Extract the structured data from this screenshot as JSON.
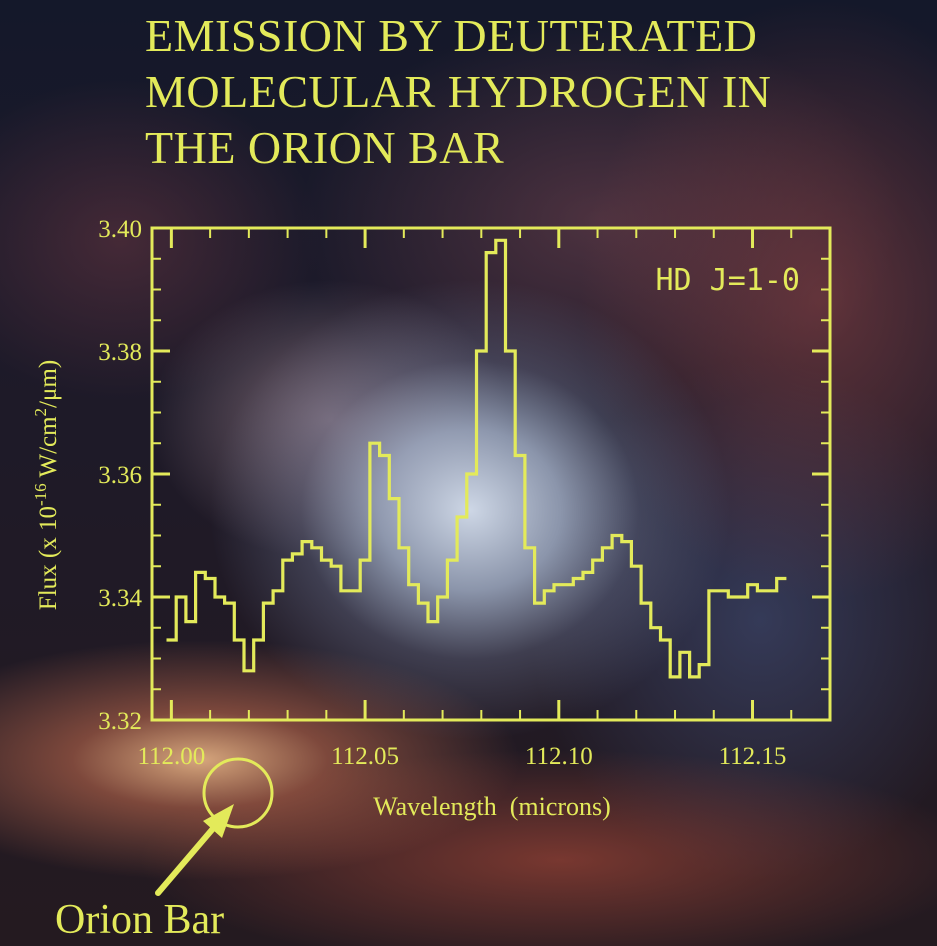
{
  "title_lines": [
    "EMISSION BY DEUTERATED",
    "MOLECULAR HYDROGEN IN",
    "THE ORION BAR"
  ],
  "annotation_label": "Orion Bar",
  "colors": {
    "accent": "#e3ea5a"
  },
  "chart_data": {
    "type": "line",
    "step": true,
    "legend_text": "HD J=1-0",
    "legend_placement": "top-right",
    "xlabel": "Wavelength  (microns)",
    "ylabel": "Flux (x 10",
    "ylabel_exponent": "-16",
    "ylabel_units": " W/cm",
    "ylabel_units_exponent": "2",
    "ylabel_units_tail": "/μm)",
    "xlim": [
      111.995,
      112.17
    ],
    "ylim": [
      3.32,
      3.4
    ],
    "x_ticks": [
      112.0,
      112.05,
      112.1,
      112.15
    ],
    "x_tick_labels": [
      "112.00",
      "112.05",
      "112.10",
      "112.15"
    ],
    "y_ticks": [
      3.32,
      3.34,
      3.36,
      3.38,
      3.4
    ],
    "y_tick_labels": [
      "3.32",
      "3.34",
      "3.36",
      "3.38",
      "3.40"
    ],
    "grid": false,
    "x": [
      112.0,
      112.0025,
      112.005,
      112.0075,
      112.01,
      112.0125,
      112.015,
      112.0175,
      112.02,
      112.0225,
      112.025,
      112.0275,
      112.03,
      112.0325,
      112.035,
      112.0375,
      112.04,
      112.0425,
      112.045,
      112.0475,
      112.05,
      112.0525,
      112.055,
      112.0575,
      112.06,
      112.0625,
      112.065,
      112.0675,
      112.07,
      112.0725,
      112.075,
      112.0775,
      112.08,
      112.0825,
      112.085,
      112.0875,
      112.09,
      112.0925,
      112.095,
      112.0975,
      112.1,
      112.1025,
      112.105,
      112.1075,
      112.11,
      112.1125,
      112.115,
      112.1175,
      112.12,
      112.1225,
      112.125,
      112.1275,
      112.13,
      112.1325,
      112.135,
      112.1375,
      112.14,
      112.1425,
      112.145,
      112.1475,
      112.15,
      112.1525,
      112.155,
      112.1575
    ],
    "y": [
      3.333,
      3.34,
      3.336,
      3.344,
      3.343,
      3.34,
      3.339,
      3.333,
      3.328,
      3.333,
      3.339,
      3.341,
      3.346,
      3.347,
      3.349,
      3.348,
      3.346,
      3.345,
      3.341,
      3.341,
      3.346,
      3.365,
      3.363,
      3.356,
      3.348,
      3.342,
      3.339,
      3.336,
      3.34,
      3.346,
      3.353,
      3.36,
      3.38,
      3.396,
      3.398,
      3.38,
      3.363,
      3.348,
      3.339,
      3.341,
      3.342,
      3.342,
      3.343,
      3.344,
      3.346,
      3.348,
      3.35,
      3.349,
      3.345,
      3.339,
      3.335,
      3.333,
      3.327,
      3.331,
      3.327,
      3.329,
      3.341,
      3.341,
      3.34,
      3.34,
      3.342,
      3.341,
      3.341,
      3.343
    ]
  }
}
